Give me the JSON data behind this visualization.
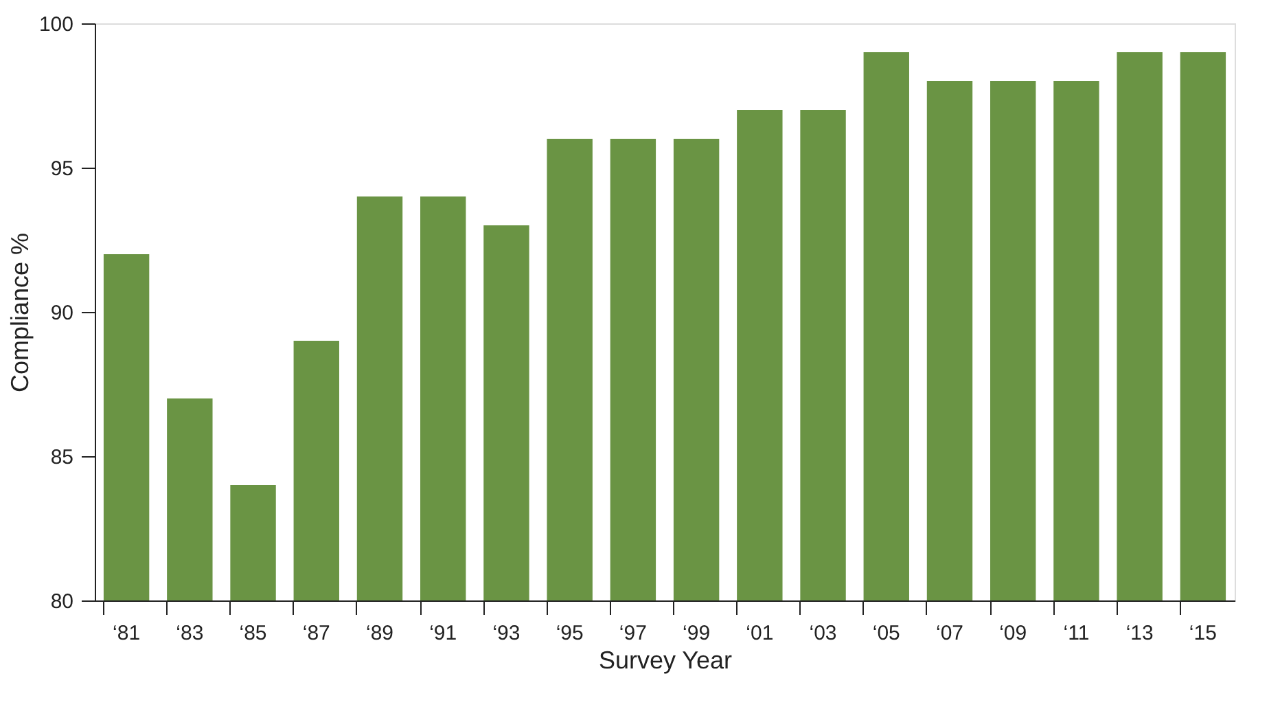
{
  "chart_data": {
    "type": "bar",
    "xlabel": "Survey Year",
    "ylabel": "Compliance %",
    "categories": [
      "‘81",
      "‘83",
      "‘85",
      "‘87",
      "‘89",
      "‘91",
      "‘93",
      "‘95",
      "‘97",
      "‘99",
      "‘01",
      "‘03",
      "‘05",
      "‘07",
      "‘09",
      "‘11",
      "‘13",
      "‘15"
    ],
    "values": [
      92,
      87,
      84,
      89,
      94,
      94,
      93,
      96,
      96,
      96,
      97,
      97,
      99,
      98,
      98,
      98,
      99,
      99
    ],
    "color": "#6a9444",
    "ylim": [
      80,
      100
    ],
    "yticks": [
      80,
      85,
      90,
      95,
      100
    ]
  }
}
